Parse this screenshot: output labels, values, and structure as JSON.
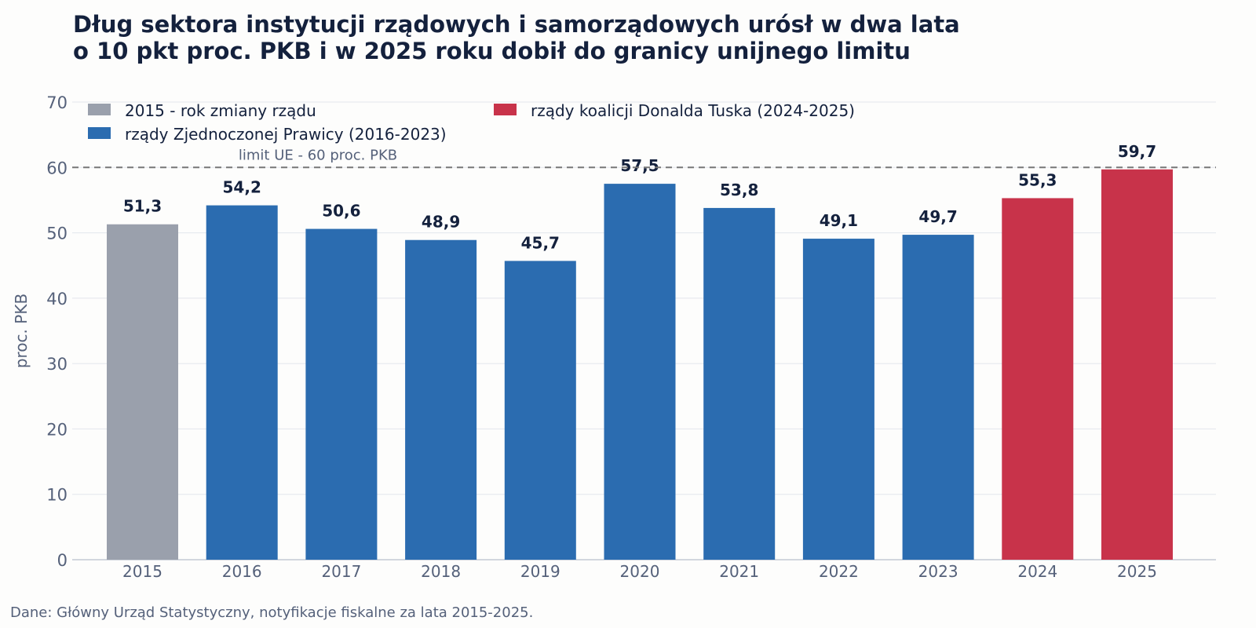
{
  "chart_data": {
    "type": "bar",
    "title_lines": [
      "Dług sektora instytucji rządowych i samorządowych urósł w dwa lata",
      "o 10 pkt proc. PKB i w 2025 roku dobił do granicy unijnego limitu"
    ],
    "ylabel": "proc. PKB",
    "xlabel": "",
    "ylim": [
      0,
      70
    ],
    "yticks": [
      0,
      10,
      20,
      30,
      40,
      50,
      60,
      70
    ],
    "grid": true,
    "legend_placement": "top-left",
    "categories": [
      "2015",
      "2016",
      "2017",
      "2018",
      "2019",
      "2020",
      "2021",
      "2022",
      "2023",
      "2024",
      "2025"
    ],
    "values": [
      51.3,
      54.2,
      50.6,
      48.9,
      45.7,
      57.5,
      53.8,
      49.1,
      49.7,
      55.3,
      59.7
    ],
    "value_labels": [
      "51,3",
      "54,2",
      "50,6",
      "48,9",
      "45,7",
      "57,5",
      "53,8",
      "49,1",
      "49,7",
      "55,3",
      "59,7"
    ],
    "bar_groups": [
      "2015",
      "zp",
      "zp",
      "zp",
      "zp",
      "zp",
      "zp",
      "zp",
      "zp",
      "tusk",
      "tusk"
    ],
    "legend": [
      {
        "key": "2015",
        "label": "2015 - rok zmiany rządu",
        "color": "#9aa0ac"
      },
      {
        "key": "zp",
        "label": "rządy Zjednoczonej Prawicy (2016-2023)",
        "color": "#2b6cb0"
      },
      {
        "key": "tusk",
        "label": "rządy koalicji Donalda Tuska (2024-2025)",
        "color": "#c8334a"
      }
    ],
    "reference_line": {
      "value": 60,
      "label": "limit UE - 60 proc. PKB",
      "color": "#777777"
    },
    "source": "Dane: Główny Urząd Statystyczny, notyfikacje fiskalne za lata 2015-2025."
  }
}
